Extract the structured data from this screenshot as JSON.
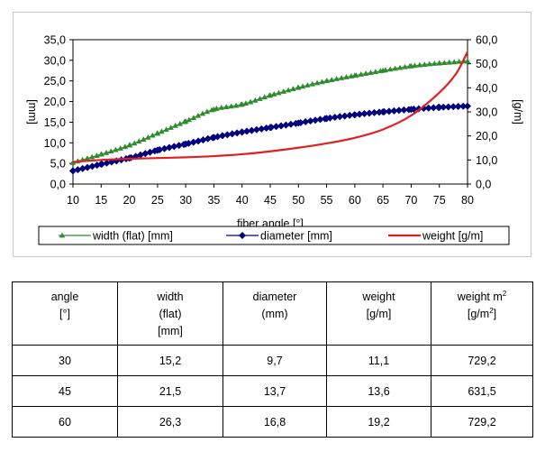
{
  "chart_data": {
    "type": "line",
    "xlabel": "fiber angle [°]",
    "ylabel_left": "[mm]",
    "ylabel_right": "[g/m]",
    "xlim": [
      10,
      80
    ],
    "xticks": [
      10,
      15,
      20,
      25,
      30,
      35,
      40,
      45,
      50,
      55,
      60,
      65,
      70,
      75,
      80
    ],
    "ylim_left": [
      0,
      35
    ],
    "yticks_left": [
      "0,0",
      "5,0",
      "10,0",
      "15,0",
      "20,0",
      "25,0",
      "30,0",
      "35,0"
    ],
    "ylim_right": [
      0,
      60
    ],
    "yticks_right": [
      "0,0",
      "10,0",
      "20,0",
      "30,0",
      "40,0",
      "50,0",
      "60,0"
    ],
    "grid": false,
    "legend": "bottom",
    "series": [
      {
        "name": "width (flat) [mm]",
        "axis": "left",
        "color": "#2e8b2e",
        "marker": "triangle",
        "x": [
          10,
          15,
          20,
          25,
          30,
          35,
          40,
          45,
          50,
          55,
          60,
          65,
          70,
          75,
          80
        ],
        "y": [
          5.2,
          7.2,
          9.4,
          12.3,
          15.2,
          18.1,
          19.3,
          21.5,
          23.4,
          25.0,
          26.3,
          27.5,
          28.6,
          29.3,
          29.8
        ]
      },
      {
        "name": "diameter [mm]",
        "axis": "left",
        "color": "#00007f",
        "marker": "diamond",
        "x": [
          10,
          15,
          20,
          25,
          30,
          35,
          40,
          45,
          50,
          55,
          60,
          65,
          70,
          75,
          80
        ],
        "y": [
          3.2,
          4.8,
          6.3,
          8.2,
          9.7,
          11.3,
          12.6,
          13.7,
          14.8,
          15.9,
          16.8,
          17.5,
          18.1,
          18.6,
          18.9
        ]
      },
      {
        "name": "weight [g/m]",
        "axis": "right",
        "color": "#e02020",
        "marker": "none",
        "x": [
          10,
          15,
          20,
          25,
          30,
          35,
          40,
          45,
          50,
          55,
          60,
          65,
          70,
          75,
          78,
          80
        ],
        "y": [
          9.2,
          10.0,
          10.5,
          10.8,
          11.1,
          11.6,
          12.4,
          13.6,
          15.1,
          16.9,
          19.2,
          22.7,
          28.5,
          38.0,
          46.0,
          55.0
        ]
      }
    ]
  },
  "table": {
    "headers": [
      {
        "lines": [
          "angle",
          "",
          "[°]"
        ]
      },
      {
        "lines": [
          "width",
          "(flat)",
          "[mm]"
        ]
      },
      {
        "lines": [
          "diameter",
          "",
          "(mm)"
        ]
      },
      {
        "lines": [
          "weight",
          "",
          "[g/m]"
        ]
      },
      {
        "lines": [
          "weight m",
          "",
          "[g/m"
        ],
        "sup": [
          "2",
          "2"
        ],
        "tail": [
          "",
          "]"
        ]
      }
    ],
    "rows": [
      [
        "30",
        "15,2",
        "9,7",
        "11,1",
        "729,2"
      ],
      [
        "45",
        "21,5",
        "13,7",
        "13,6",
        "631,5"
      ],
      [
        "60",
        "26,3",
        "16,8",
        "19,2",
        "729,2"
      ]
    ]
  }
}
